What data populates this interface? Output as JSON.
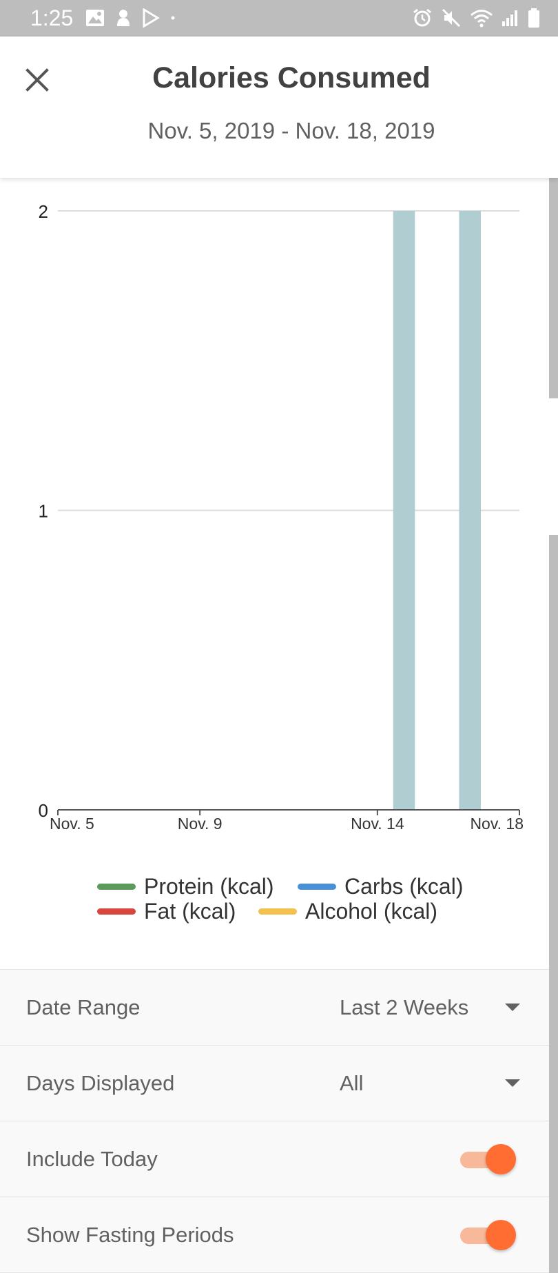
{
  "status_bar": {
    "time": "1:25",
    "left_icons": [
      "image-icon",
      "pokemon-icon",
      "play-store-icon",
      "dot-icon"
    ],
    "right_icons": [
      "alarm-icon",
      "mute-icon",
      "wifi-icon",
      "signal-icon",
      "battery-icon"
    ]
  },
  "header": {
    "close_icon": "close-icon",
    "title": "Calories Consumed",
    "date_range_text": "Nov. 5, 2019 - Nov. 18, 2019"
  },
  "colors": {
    "bar": "#b0cdd2",
    "grid": "#dddddd",
    "axis": "#555555",
    "protein": "#5a9a5a",
    "carbs": "#4a90d9",
    "fat": "#d9463e",
    "alcohol": "#f2c14e",
    "accent": "#ff6d33"
  },
  "chart_data": {
    "type": "bar",
    "title": "",
    "xlabel": "",
    "ylabel": "",
    "x_tick_labels": [
      "Nov. 5",
      "Nov. 9",
      "Nov. 14",
      "Nov. 18"
    ],
    "y_tick_labels": [
      "0",
      "1",
      "2"
    ],
    "ylim": [
      0,
      2
    ],
    "grid": true,
    "categories": [
      "Nov. 5",
      "Nov. 6",
      "Nov. 7",
      "Nov. 8",
      "Nov. 9",
      "Nov. 10",
      "Nov. 11",
      "Nov. 12",
      "Nov. 13",
      "Nov. 14",
      "Nov. 15",
      "Nov. 16",
      "Nov. 17",
      "Nov. 18"
    ],
    "values": [
      0,
      0,
      0,
      0,
      0,
      0,
      0,
      0,
      0,
      0,
      2,
      0,
      2,
      0
    ],
    "legend_position": "bottom",
    "legend": [
      {
        "label": "Protein (kcal)",
        "color": "#5a9a5a"
      },
      {
        "label": "Carbs (kcal)",
        "color": "#4a90d9"
      },
      {
        "label": "Fat (kcal)",
        "color": "#d9463e"
      },
      {
        "label": "Alcohol (kcal)",
        "color": "#f2c14e"
      }
    ]
  },
  "settings": [
    {
      "label": "Date Range",
      "type": "dropdown",
      "value": "Last 2 Weeks"
    },
    {
      "label": "Days Displayed",
      "type": "dropdown",
      "value": "All"
    },
    {
      "label": "Include Today",
      "type": "toggle",
      "on": true
    },
    {
      "label": "Show Fasting Periods",
      "type": "toggle",
      "on": true
    }
  ]
}
